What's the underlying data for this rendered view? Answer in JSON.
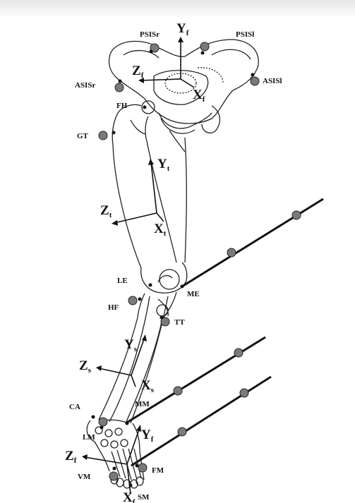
{
  "markers": {
    "psis_r": "PSISr",
    "psis_l": "PSISl",
    "asis_r": "ASISr",
    "asis_l": "ASISl",
    "fh": "FH",
    "gt": "GT",
    "le": "LE",
    "me": "ME",
    "hf": "HF",
    "tt": "TT",
    "ca": "CA",
    "mm": "MM",
    "lm": "LM",
    "vm": "VM",
    "fm": "FM",
    "sm": "SM"
  },
  "axes": {
    "pelvis": {
      "y": "Y",
      "y_sub": "f",
      "z": "Z",
      "z_sub": "f",
      "x": "X",
      "x_sub": "f"
    },
    "thigh": {
      "y": "Y",
      "y_sub": "t",
      "z": "Z",
      "z_sub": "t",
      "x": "X",
      "x_sub": "t"
    },
    "shank": {
      "y": "Y",
      "y_sub": "s",
      "z": "Z",
      "z_sub": "s",
      "x": "X",
      "x_sub": "s"
    },
    "foot": {
      "y": "Y",
      "y_sub": "f",
      "z": "Z",
      "z_sub": "f",
      "x": "X",
      "x_sub": "f"
    }
  },
  "colors": {
    "marker": "#7a7a7a",
    "line": "#111111"
  }
}
